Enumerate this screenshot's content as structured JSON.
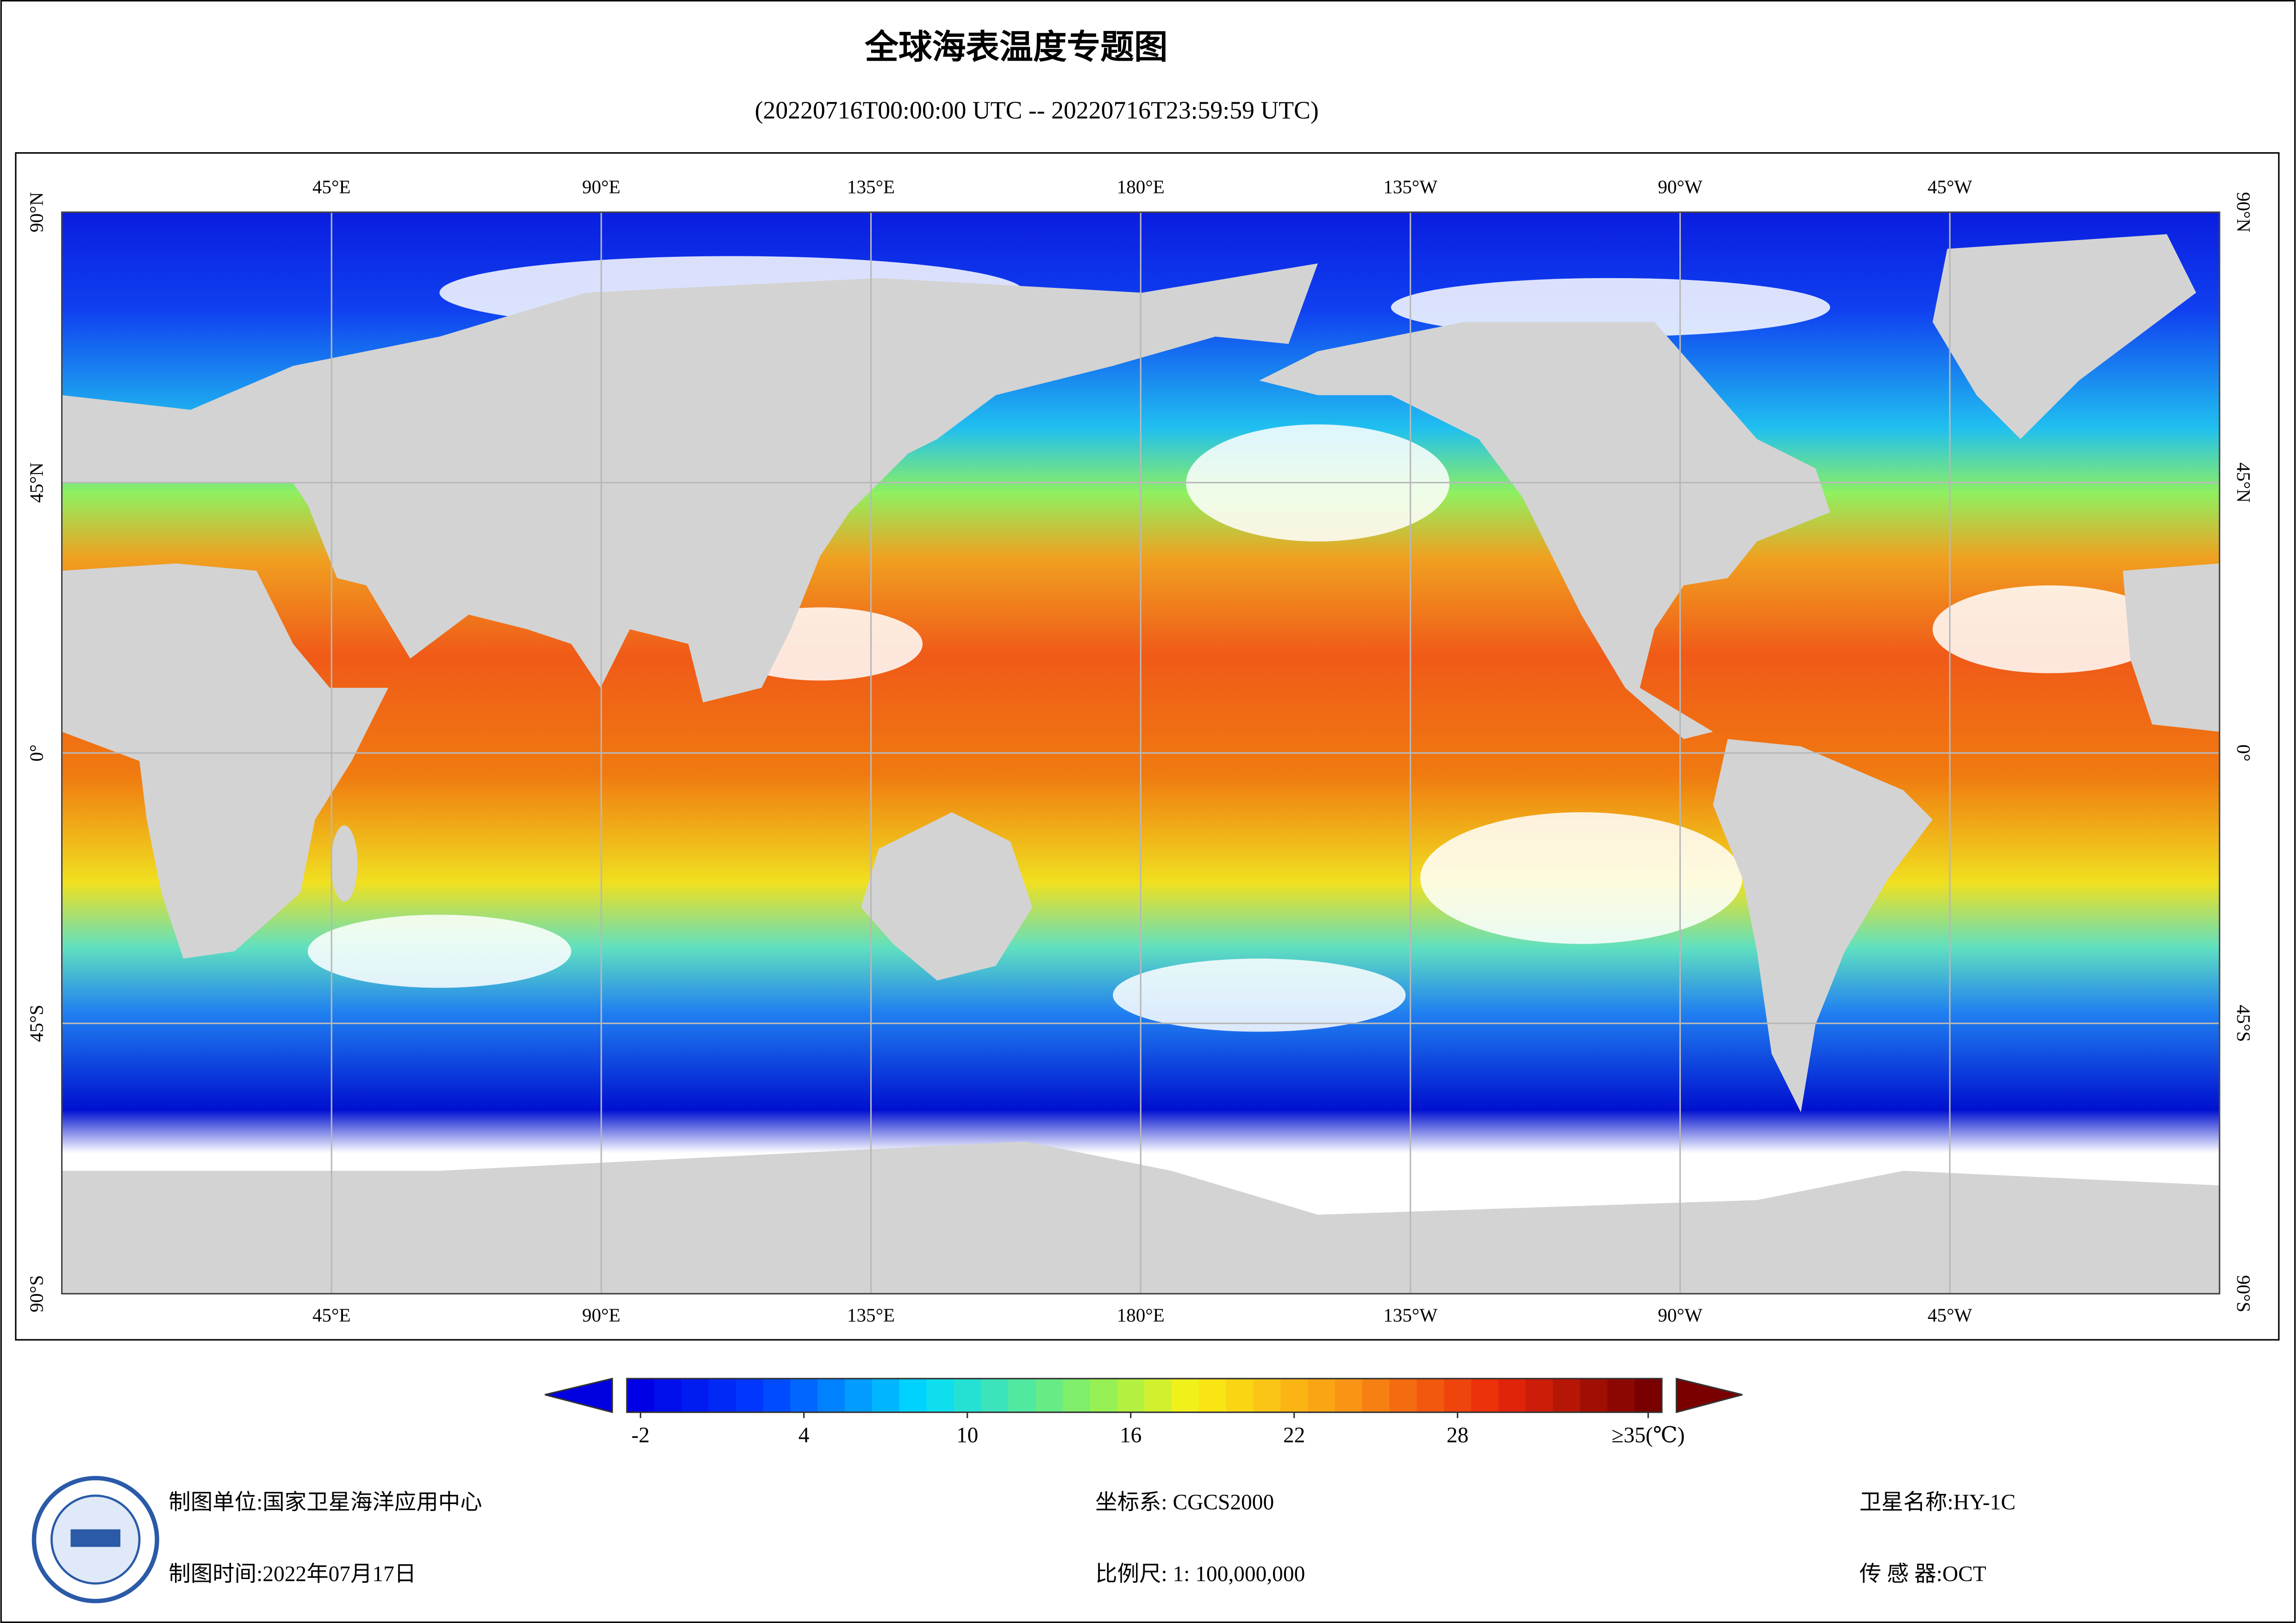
{
  "header": {
    "title": "全球海表温度专题图",
    "subtitle": "(20220716T00:00:00 UTC -- 20220716T23:59:59 UTC)"
  },
  "map": {
    "lon_labels": [
      "45°E",
      "90°E",
      "135°E",
      "180°E",
      "135°W",
      "90°W",
      "45°W"
    ],
    "lat_labels": [
      "90°N",
      "45°N",
      "0°",
      "45°S",
      "90°S"
    ]
  },
  "colorbar": {
    "lim": [
      -2.5,
      35.5
    ],
    "ticks": [
      -2,
      4,
      10,
      16,
      22,
      28,
      {
        "value": 35,
        "label": "≥35(℃)"
      }
    ]
  },
  "footer": {
    "unit": "制图单位:国家卫星海洋应用中心",
    "date": "制图时间:2022年07月17日",
    "crs": "坐标系: CGCS2000",
    "scale": "比例尺: 1: 100,000,000",
    "satellite": "卫星名称:HY-1C",
    "sensor": "传 感 器:OCT"
  }
}
